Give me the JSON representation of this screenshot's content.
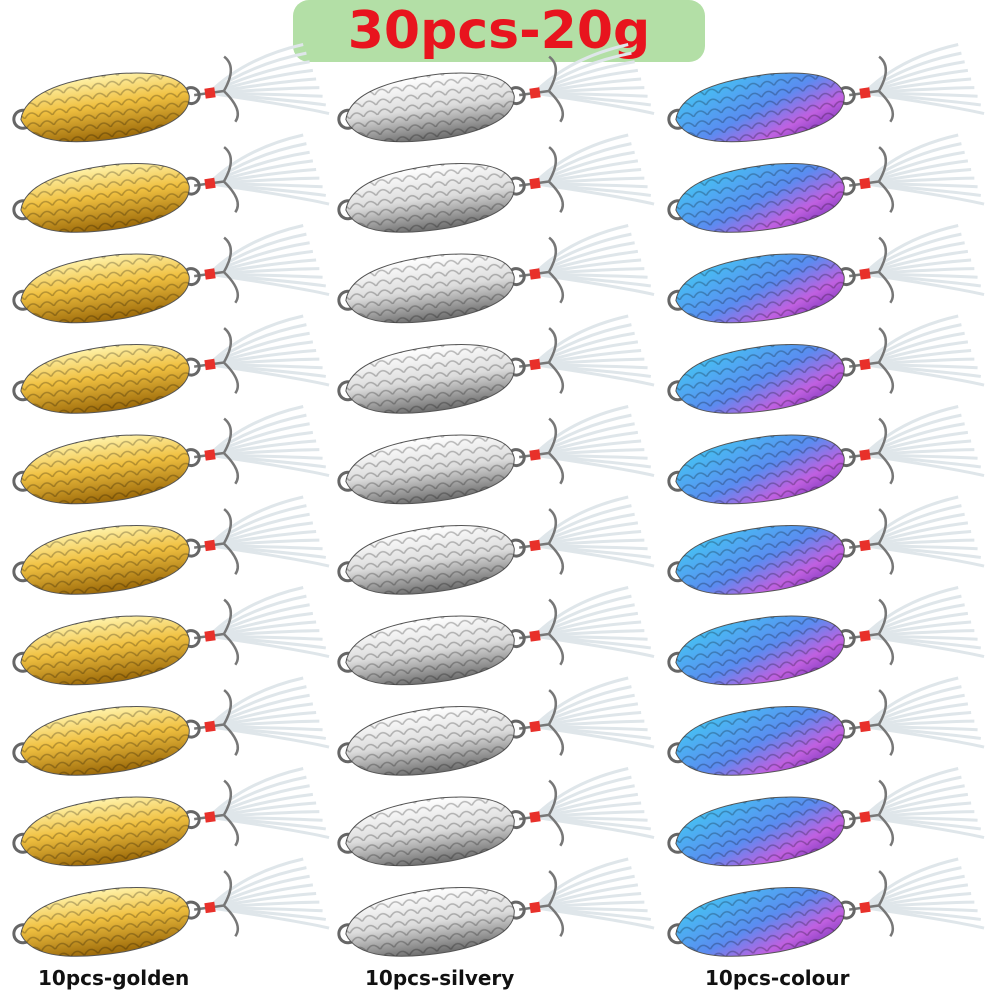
{
  "title": "30pcs-20g",
  "columns": [
    {
      "label": "10pcs-golden"
    },
    {
      "label": "10pcs-silvery"
    },
    {
      "label": "10pcs-colour"
    }
  ]
}
